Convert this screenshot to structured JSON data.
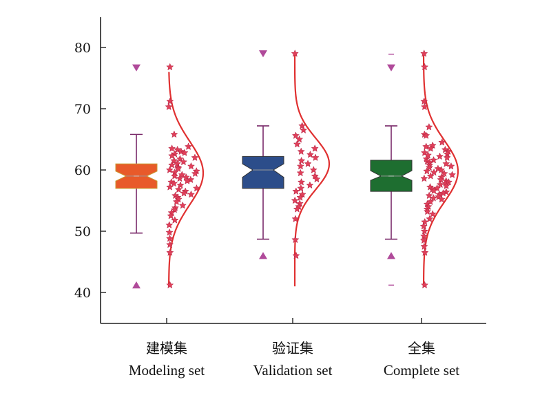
{
  "chart_data": {
    "type": "box",
    "title": "",
    "xlabel": "",
    "ylabel": "",
    "ylim": [
      36,
      85
    ],
    "yticks": [
      40,
      50,
      60,
      70,
      80
    ],
    "grid": false,
    "legend": "none",
    "categories": [
      {
        "label_zh": "建模集",
        "label_en": "Modeling set",
        "color": "#e85a2a"
      },
      {
        "label_zh": "验证集",
        "label_en": "Validation set",
        "color": "#2c4d8a"
      },
      {
        "label_zh": "全集",
        "label_en": "Complete set",
        "color": "#1e6e30"
      }
    ],
    "marker_color": "#b04a9a",
    "point_color": "#e0405a",
    "curve_color": "#e03030",
    "series": [
      {
        "q1": 57.0,
        "median": 59.0,
        "q3": 61.0,
        "notch_low": 58.2,
        "notch_high": 59.8,
        "whisker_low": 49.7,
        "whisker_high": 65.8,
        "mean": 59.0,
        "max_marker": 76.7,
        "min_marker": 41.2,
        "extra_max_marker": null,
        "extra_min_marker": null,
        "mean_marker": 59.0,
        "kde_mean": 59.5,
        "kde_sd": 5.2,
        "kde_range": [
          41,
          76
        ],
        "points": [
          76.8,
          71.2,
          70.3,
          65.8,
          63.8,
          63.5,
          63.3,
          63.0,
          62.8,
          62.6,
          62.3,
          62.0,
          61.8,
          61.5,
          61.3,
          61.0,
          60.8,
          60.6,
          60.4,
          60.2,
          60.0,
          59.8,
          59.6,
          59.4,
          59.2,
          59.0,
          58.8,
          58.6,
          58.4,
          58.2,
          58.0,
          57.8,
          57.5,
          57.2,
          57.0,
          56.8,
          56.5,
          56.2,
          56.0,
          55.8,
          55.5,
          55.2,
          54.8,
          54.2,
          53.8,
          53.5,
          53.0,
          52.5,
          51.8,
          51.0,
          49.8,
          48.8,
          47.8,
          46.5,
          41.2
        ]
      },
      {
        "q1": 57.0,
        "median": 60.0,
        "q3": 62.2,
        "notch_low": 58.8,
        "notch_high": 61.0,
        "whisker_low": 48.7,
        "whisker_high": 67.2,
        "mean": 60.0,
        "max_marker": 79.0,
        "min_marker": 46.0,
        "extra_max_marker": null,
        "extra_min_marker": null,
        "mean_marker": null,
        "kde_mean": 61.0,
        "kde_sd": 4.2,
        "kde_range": [
          41,
          79
        ],
        "points": [
          79.0,
          67.2,
          66.5,
          65.6,
          65.0,
          64.2,
          63.5,
          63.0,
          62.5,
          62.0,
          61.5,
          61.0,
          60.6,
          60.0,
          59.5,
          59.0,
          58.5,
          58.0,
          57.5,
          57.0,
          56.5,
          56.0,
          55.5,
          55.0,
          54.5,
          54.0,
          53.6,
          52.0,
          48.6,
          46.0
        ]
      },
      {
        "q1": 56.5,
        "median": 59.0,
        "q3": 61.6,
        "notch_low": 58.3,
        "notch_high": 59.9,
        "whisker_low": 48.7,
        "whisker_high": 67.2,
        "mean": 59.0,
        "max_marker": 76.7,
        "min_marker": 46.0,
        "extra_max_marker": 78.9,
        "extra_min_marker": 41.2,
        "mean_marker": 59.0,
        "kde_mean": 59.8,
        "kde_sd": 5.0,
        "kde_range": [
          41,
          79
        ],
        "points": [
          79.0,
          76.8,
          71.2,
          70.3,
          67.0,
          65.8,
          65.6,
          64.5,
          64.0,
          63.8,
          63.5,
          63.3,
          63.0,
          62.8,
          62.6,
          62.4,
          62.2,
          62.0,
          61.8,
          61.6,
          61.4,
          61.2,
          61.0,
          60.8,
          60.6,
          60.4,
          60.2,
          60.0,
          59.8,
          59.6,
          59.4,
          59.2,
          59.0,
          58.8,
          58.6,
          58.4,
          58.2,
          58.0,
          57.8,
          57.6,
          57.4,
          57.2,
          57.0,
          56.8,
          56.6,
          56.4,
          56.2,
          56.0,
          55.8,
          55.6,
          55.4,
          55.2,
          54.8,
          54.4,
          54.0,
          53.6,
          53.2,
          52.8,
          52.0,
          51.5,
          50.8,
          50.0,
          49.2,
          48.5,
          47.5,
          46.5,
          41.2
        ]
      }
    ]
  }
}
